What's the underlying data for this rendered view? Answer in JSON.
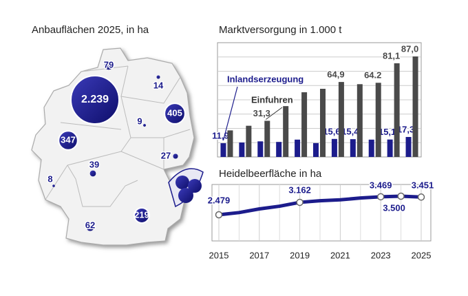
{
  "chart_data": [
    {
      "type": "bubble",
      "title": "Anbauflächen 2025, in ha",
      "color": "#1c1c8c",
      "values": [
        79,
        2239,
        14,
        405,
        9,
        347,
        39,
        27,
        8,
        62,
        219
      ],
      "value_labels": [
        "79",
        "2.239",
        "14",
        "405",
        "9",
        "347",
        "39",
        "27",
        "8",
        "62",
        "219"
      ]
    },
    {
      "type": "bar",
      "title": "Marktversorgung in 1.000 t",
      "grid": true,
      "series": [
        {
          "name": "Inlandserzeugung",
          "color": "#1c1c8c",
          "values": [
            11.9,
            12.5,
            13.5,
            13,
            15,
            12,
            15.6,
            15.4,
            15,
            15.1,
            17.3
          ],
          "value_labels": [
            "11,9",
            null,
            null,
            null,
            null,
            null,
            "15,6",
            "15,4",
            null,
            "15,1",
            "17,3"
          ]
        },
        {
          "name": "Einfuhren",
          "color": "#4a4a4a",
          "values": [
            23,
            27,
            31.3,
            44,
            56,
            59,
            64.9,
            63,
            64.2,
            81.1,
            87.0
          ],
          "value_labels": [
            null,
            null,
            "31,3",
            null,
            null,
            null,
            "64,9",
            null,
            "64.2",
            "81,1",
            "87,0"
          ]
        }
      ]
    },
    {
      "type": "line",
      "title": "Heidelbeerfläche in ha",
      "color": "#1c1c8c",
      "grid": true,
      "x": [
        2015,
        2016,
        2017,
        2018,
        2019,
        2020,
        2021,
        2022,
        2023,
        2024,
        2025
      ],
      "values": [
        2479,
        2600,
        2800,
        2950,
        3162,
        3250,
        3300,
        3400,
        3469,
        3500,
        3451
      ],
      "value_labels": [
        "2.479",
        null,
        null,
        null,
        "3.162",
        null,
        null,
        null,
        "3.469",
        "3.500",
        "3.451"
      ],
      "xlim": [
        2015,
        2025
      ],
      "xticks": [
        2015,
        2017,
        2019,
        2021,
        2023,
        2025
      ]
    }
  ]
}
